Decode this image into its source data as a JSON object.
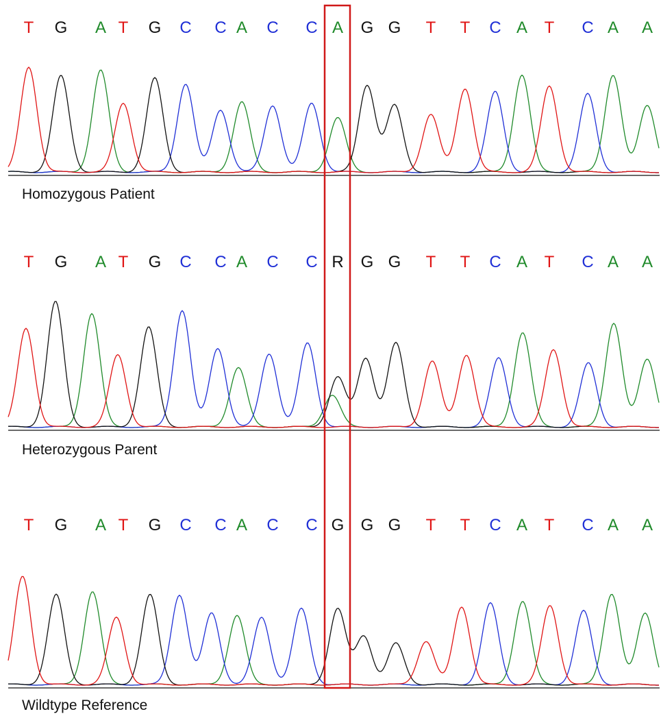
{
  "colors": {
    "A": "#1f8a2a",
    "C": "#1f2fd6",
    "G": "#111111",
    "T": "#e01414",
    "R": "#111111",
    "highlight": "#d01818"
  },
  "panels": [
    {
      "label": "Homozygous Patient",
      "bases": [
        "T",
        "G",
        "A",
        "T",
        "G",
        "C",
        "C",
        "A",
        "C",
        "C",
        "A",
        "G",
        "G",
        "T",
        "T",
        "C",
        "A",
        "T",
        "C",
        "A",
        "A"
      ],
      "peaks": [
        {
          "base": "T",
          "height": 0.93
        },
        {
          "base": "G",
          "height": 0.85
        },
        {
          "base": "A",
          "height": 0.9
        },
        {
          "base": "T",
          "height": 0.61
        },
        {
          "base": "G",
          "height": 0.83
        },
        {
          "base": "C",
          "height": 0.78
        },
        {
          "base": "C",
          "height": 0.55
        },
        {
          "base": "A",
          "height": 0.62
        },
        {
          "base": "C",
          "height": 0.59
        },
        {
          "base": "C",
          "height": 0.61
        },
        {
          "base": "A",
          "height": 0.48
        },
        {
          "base": "G",
          "height": 0.77
        },
        {
          "base": "G",
          "height": 0.59
        },
        {
          "base": "T",
          "height": 0.51
        },
        {
          "base": "T",
          "height": 0.74
        },
        {
          "base": "C",
          "height": 0.71
        },
        {
          "base": "A",
          "height": 0.86
        },
        {
          "base": "T",
          "height": 0.76
        },
        {
          "base": "C",
          "height": 0.69
        },
        {
          "base": "A",
          "height": 0.86
        },
        {
          "base": "A",
          "height": 0.59
        }
      ]
    },
    {
      "label": "Heterozygous Parent",
      "bases": [
        "T",
        "G",
        "A",
        "T",
        "G",
        "C",
        "C",
        "A",
        "C",
        "C",
        "R",
        "G",
        "G",
        "T",
        "T",
        "C",
        "A",
        "T",
        "C",
        "A",
        "A"
      ],
      "peaks": [
        {
          "base": "T",
          "height": 0.93
        },
        {
          "base": "G",
          "height": 1.18
        },
        {
          "base": "A",
          "height": 1.07
        },
        {
          "base": "T",
          "height": 0.68
        },
        {
          "base": "G",
          "height": 0.94
        },
        {
          "base": "C",
          "height": 1.1
        },
        {
          "base": "C",
          "height": 0.74
        },
        {
          "base": "A",
          "height": 0.56
        },
        {
          "base": "C",
          "height": 0.69
        },
        {
          "base": "C",
          "height": 0.79
        },
        {
          "base": "G",
          "height": 0.47
        },
        {
          "base": "A",
          "height": 0.3
        },
        {
          "base": "G",
          "height": 0.65
        },
        {
          "base": "G",
          "height": 0.79
        },
        {
          "base": "T",
          "height": 0.62
        },
        {
          "base": "T",
          "height": 0.68
        },
        {
          "base": "C",
          "height": 0.65
        },
        {
          "base": "A",
          "height": 0.89
        },
        {
          "base": "T",
          "height": 0.73
        },
        {
          "base": "C",
          "height": 0.6
        },
        {
          "base": "A",
          "height": 0.98
        },
        {
          "base": "A",
          "height": 0.64
        }
      ]
    },
    {
      "label": "Wildtype Reference",
      "bases": [
        "T",
        "G",
        "A",
        "T",
        "G",
        "C",
        "C",
        "A",
        "C",
        "C",
        "G",
        "G",
        "G",
        "T",
        "T",
        "C",
        "A",
        "T",
        "C",
        "A",
        "A"
      ],
      "peaks": [
        {
          "base": "T",
          "height": 1.0
        },
        {
          "base": "G",
          "height": 0.83
        },
        {
          "base": "A",
          "height": 0.86
        },
        {
          "base": "T",
          "height": 0.62
        },
        {
          "base": "G",
          "height": 0.83
        },
        {
          "base": "C",
          "height": 0.83
        },
        {
          "base": "C",
          "height": 0.66
        },
        {
          "base": "A",
          "height": 0.64
        },
        {
          "base": "C",
          "height": 0.62
        },
        {
          "base": "C",
          "height": 0.7
        },
        {
          "base": "G",
          "height": 0.7
        },
        {
          "base": "G",
          "height": 0.45
        },
        {
          "base": "G",
          "height": 0.38
        },
        {
          "base": "T",
          "height": 0.4
        },
        {
          "base": "T",
          "height": 0.72
        },
        {
          "base": "C",
          "height": 0.75
        },
        {
          "base": "A",
          "height": 0.77
        },
        {
          "base": "T",
          "height": 0.73
        },
        {
          "base": "C",
          "height": 0.68
        },
        {
          "base": "A",
          "height": 0.84
        },
        {
          "base": "A",
          "height": 0.66
        }
      ]
    }
  ]
}
